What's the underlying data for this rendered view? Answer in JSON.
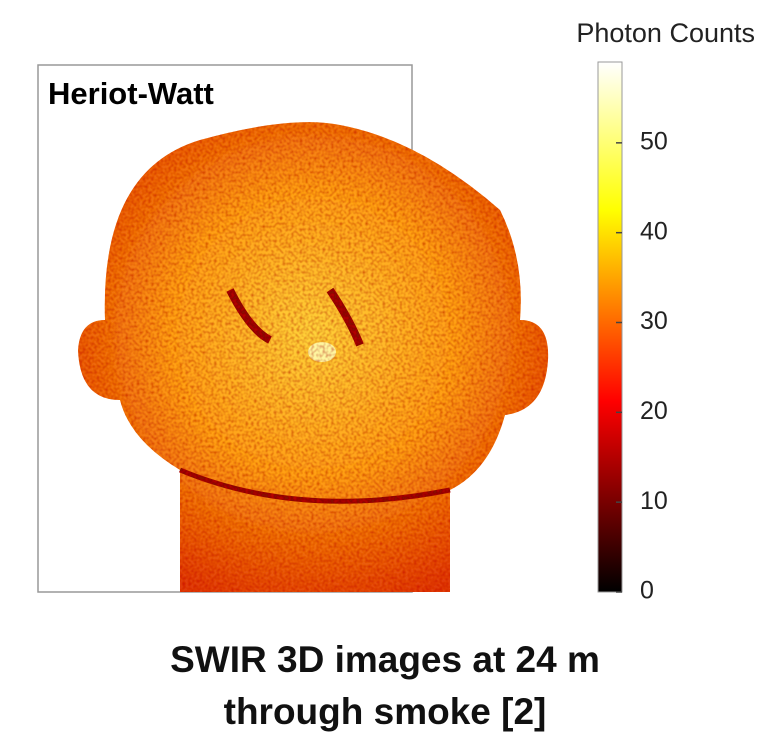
{
  "image_label": "Heriot-Watt",
  "colorbar": {
    "title": "Photon Counts",
    "clim": [
      0,
      59
    ],
    "ticks": [
      0,
      10,
      20,
      30,
      40,
      50
    ],
    "colormap": "hot"
  },
  "caption": [
    "SWIR 3D images at 24 m",
    "through smoke [2]"
  ]
}
